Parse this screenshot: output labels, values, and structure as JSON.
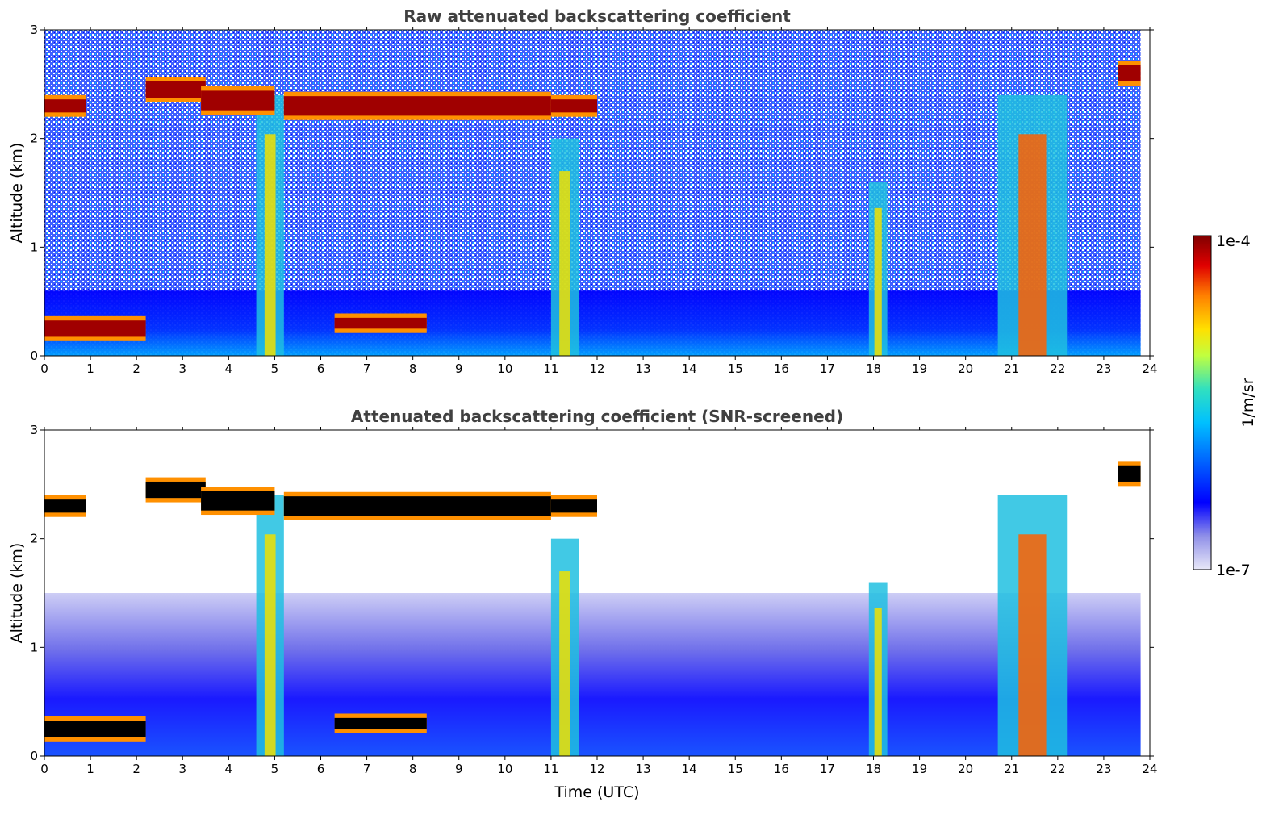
{
  "chart_data": [
    {
      "type": "heatmap",
      "title": "Raw attenuated backscattering coefficient",
      "xlabel": "",
      "ylabel": "Altitude (km)",
      "xlim": [
        0,
        24
      ],
      "ylim": [
        0,
        3
      ],
      "xticks": [
        "0",
        "1",
        "2",
        "3",
        "4",
        "5",
        "6",
        "7",
        "8",
        "9",
        "10",
        "11",
        "12",
        "13",
        "14",
        "15",
        "16",
        "17",
        "18",
        "19",
        "20",
        "21",
        "22",
        "23",
        "24"
      ],
      "yticks": [
        "0",
        "1",
        "2",
        "3"
      ],
      "screened": false,
      "cloud_layers": [
        {
          "start": 0.0,
          "end": 0.9,
          "alt": 2.3,
          "thickness": 0.12
        },
        {
          "start": 0.0,
          "end": 2.2,
          "alt": 0.25,
          "thickness": 0.15
        },
        {
          "start": 2.2,
          "end": 3.5,
          "alt": 2.45,
          "thickness": 0.15
        },
        {
          "start": 3.4,
          "end": 5.0,
          "alt": 2.35,
          "thickness": 0.18
        },
        {
          "start": 5.2,
          "end": 11.0,
          "alt": 2.3,
          "thickness": 0.18
        },
        {
          "start": 11.0,
          "end": 12.0,
          "alt": 2.3,
          "thickness": 0.12
        },
        {
          "start": 6.3,
          "end": 8.3,
          "alt": 0.3,
          "thickness": 0.1
        },
        {
          "start": 23.3,
          "end": 23.8,
          "alt": 2.6,
          "thickness": 0.15
        }
      ],
      "precip_columns": [
        {
          "start": 4.6,
          "end": 5.2,
          "top": 2.4
        },
        {
          "start": 11.0,
          "end": 11.6,
          "top": 2.0
        },
        {
          "start": 17.9,
          "end": 18.3,
          "top": 1.6
        },
        {
          "start": 20.7,
          "end": 22.2,
          "top": 2.4
        }
      ]
    },
    {
      "type": "heatmap",
      "title": "Attenuated backscattering coefficient (SNR-screened)",
      "xlabel": "Time (UTC)",
      "ylabel": "Altitude (km)",
      "xlim": [
        0,
        24
      ],
      "ylim": [
        0,
        3
      ],
      "xticks": [
        "0",
        "1",
        "2",
        "3",
        "4",
        "5",
        "6",
        "7",
        "8",
        "9",
        "10",
        "11",
        "12",
        "13",
        "14",
        "15",
        "16",
        "17",
        "18",
        "19",
        "20",
        "21",
        "22",
        "23",
        "24"
      ],
      "yticks": [
        "0",
        "1",
        "2",
        "3"
      ],
      "screened": true,
      "cloud_layers": [
        {
          "start": 0.0,
          "end": 0.9,
          "alt": 2.3,
          "thickness": 0.12
        },
        {
          "start": 0.0,
          "end": 2.2,
          "alt": 0.25,
          "thickness": 0.15
        },
        {
          "start": 2.2,
          "end": 3.5,
          "alt": 2.45,
          "thickness": 0.15
        },
        {
          "start": 3.4,
          "end": 5.0,
          "alt": 2.35,
          "thickness": 0.18
        },
        {
          "start": 5.2,
          "end": 11.0,
          "alt": 2.3,
          "thickness": 0.18
        },
        {
          "start": 11.0,
          "end": 12.0,
          "alt": 2.3,
          "thickness": 0.12
        },
        {
          "start": 6.3,
          "end": 8.3,
          "alt": 0.3,
          "thickness": 0.1
        },
        {
          "start": 23.3,
          "end": 23.8,
          "alt": 2.6,
          "thickness": 0.15
        }
      ],
      "precip_columns": [
        {
          "start": 4.6,
          "end": 5.2,
          "top": 2.4
        },
        {
          "start": 11.0,
          "end": 11.6,
          "top": 2.0
        },
        {
          "start": 17.9,
          "end": 18.3,
          "top": 1.6
        },
        {
          "start": 20.7,
          "end": 22.2,
          "top": 2.4
        }
      ]
    }
  ],
  "colorbar": {
    "label": "1/m/sr",
    "max_label": "1e-4",
    "min_label": "1e-7",
    "colors": [
      "#e8e8f8",
      "#9090e8",
      "#0000ff",
      "#0060ff",
      "#00c0ff",
      "#30e0c0",
      "#c0ff40",
      "#ffe000",
      "#ff8000",
      "#e00000",
      "#800000"
    ]
  }
}
